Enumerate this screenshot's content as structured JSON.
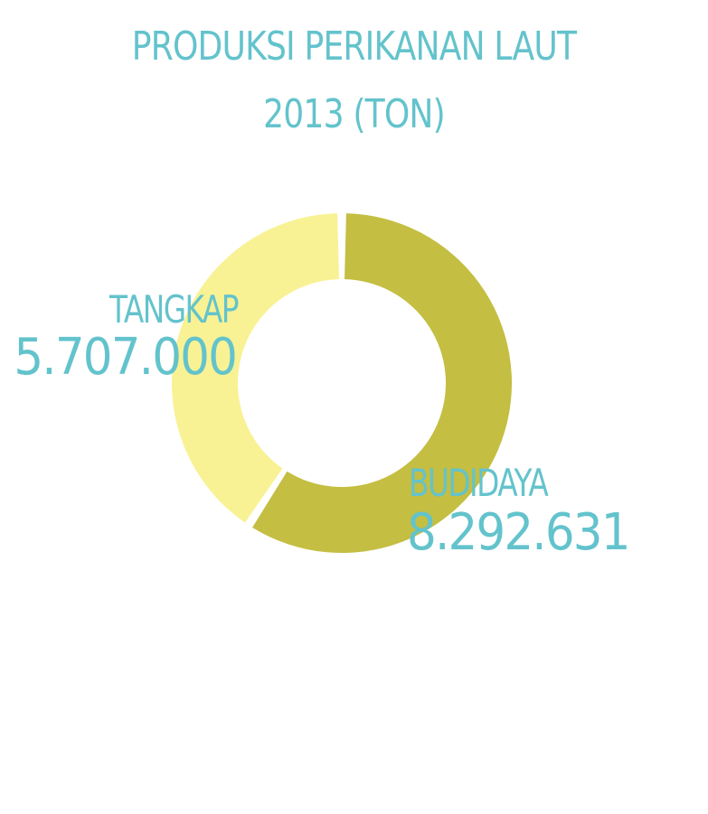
{
  "title_lines": [
    "PRODUKSI PERIKANAN LAUT",
    "2013 (TON)"
  ],
  "colors": {
    "text": "#63c3cc",
    "budidaya": "#c4be42",
    "tangkap": "#f8f294",
    "background": "#ffffff"
  },
  "chart_data": {
    "type": "pie",
    "donut": true,
    "title": "PRODUKSI PERIKANAN LAUT 2013 (TON)",
    "slices": [
      {
        "label": "BUDIDAYA",
        "value": 8292631,
        "value_text": "8.292.631",
        "color": "#c4be42"
      },
      {
        "label": "TANGKAP",
        "value": 5707000,
        "value_text": "5.707.000",
        "color": "#f8f294"
      }
    ],
    "legend": "none"
  }
}
